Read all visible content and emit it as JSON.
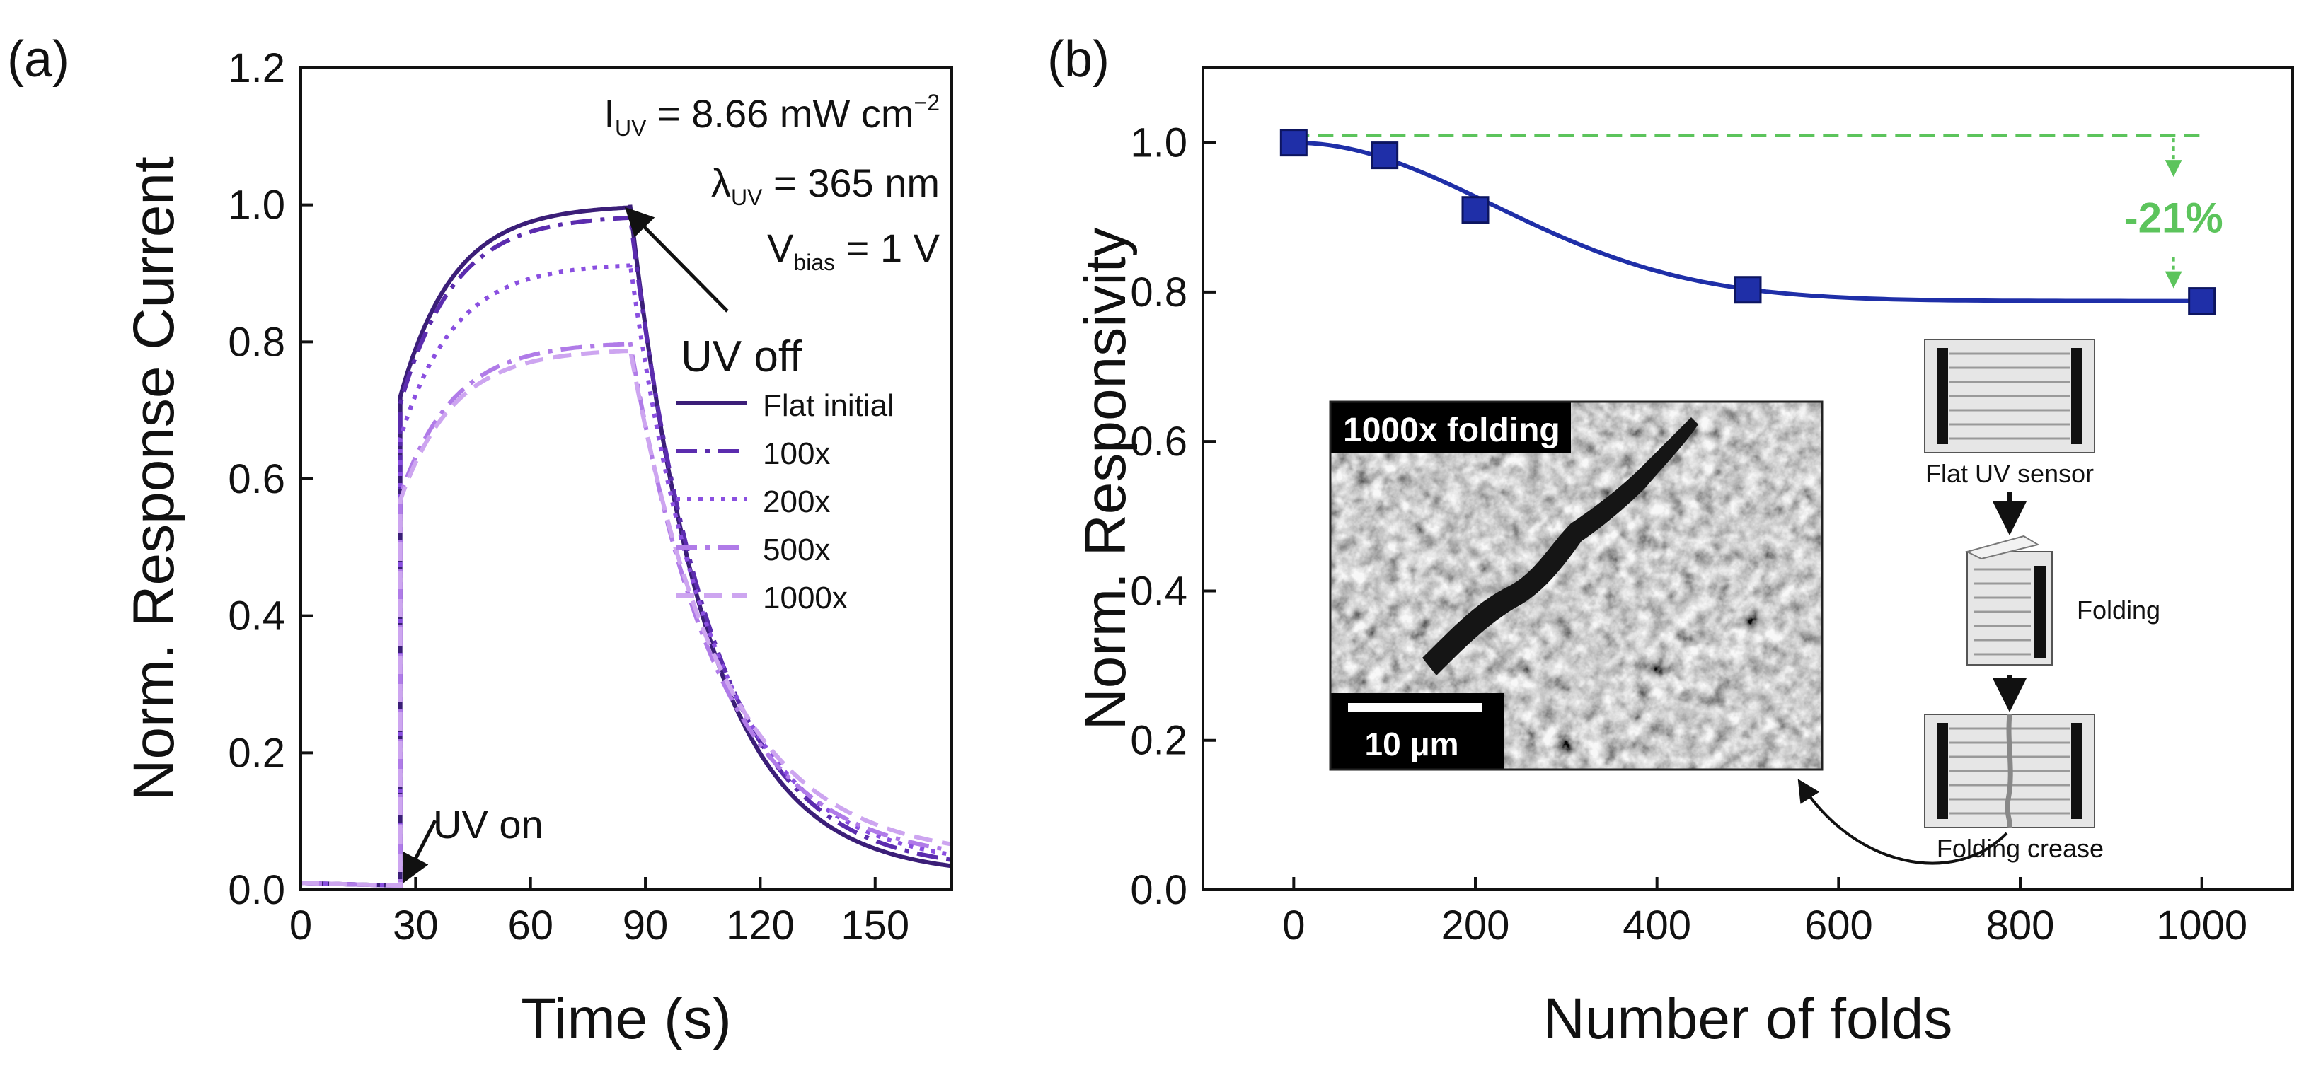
{
  "chart_data": [
    {
      "panel_label": "(a)",
      "type": "line",
      "title": "",
      "xlabel": "Time (s)",
      "ylabel": "Norm. Response Current",
      "xlim": [
        0,
        170
      ],
      "ylim": [
        0,
        1.2
      ],
      "xticks": [
        "0",
        "30",
        "60",
        "90",
        "120",
        "150"
      ],
      "yticks": [
        "0.0",
        "0.2",
        "0.4",
        "0.6",
        "0.8",
        "1.0",
        "1.2"
      ],
      "uv_on_time": 26,
      "uv_off_time": 86,
      "conditions": {
        "intensity_label": "I",
        "intensity_sub": "UV",
        "intensity_value": " = 8.66 mW cm",
        "intensity_sup": "−2",
        "wavelength_label": "λ",
        "wavelength_sub": "UV",
        "wavelength_value": " = 365 nm",
        "bias_label": "V",
        "bias_sub": "bias",
        "bias_value": " = 1 V"
      },
      "annotations": {
        "uv_off": "UV off",
        "uv_on": "UV on"
      },
      "series": [
        {
          "name": "Flat initial",
          "peak": 1.0,
          "color": "#3b1e78",
          "dash": "solid",
          "tau_decay": 20
        },
        {
          "name": "100x",
          "peak": 0.985,
          "color": "#5b2cae",
          "dash": "dashdot",
          "tau_decay": 21
        },
        {
          "name": "200x",
          "peak": 0.915,
          "color": "#8a4fe0",
          "dash": "dotted",
          "tau_decay": 22
        },
        {
          "name": "500x",
          "peak": 0.8,
          "color": "#b07be8",
          "dash": "dashdot",
          "tau_decay": 23
        },
        {
          "name": "1000x",
          "peak": 0.79,
          "color": "#cda5f0",
          "dash": "dashed",
          "tau_decay": 24
        }
      ]
    },
    {
      "panel_label": "(b)",
      "type": "scatter",
      "title": "",
      "xlabel": "Number of folds",
      "ylabel": "Norm. Responsivity",
      "xlim": [
        -100,
        1100
      ],
      "ylim": [
        0,
        1.1
      ],
      "xticks": [
        "0",
        "200",
        "400",
        "600",
        "800",
        "1000"
      ],
      "yticks": [
        "0.0",
        "0.2",
        "0.4",
        "0.6",
        "0.8",
        "1.0"
      ],
      "series": [
        {
          "name": "Norm. Responsivity",
          "x": [
            0,
            100,
            200,
            500,
            1000
          ],
          "y": [
            1.0,
            0.983,
            0.91,
            0.803,
            0.788
          ],
          "color": "#1f2fa8"
        }
      ],
      "reference_line": {
        "y": 1.01,
        "color": "#5cc45c"
      },
      "change_label": "-21%",
      "inset_labels": {
        "sem_title": "1000x folding",
        "scale_bar": "10 μm",
        "flat_sensor": "Flat UV sensor",
        "folding": "Folding",
        "crease": "Folding crease"
      }
    }
  ]
}
